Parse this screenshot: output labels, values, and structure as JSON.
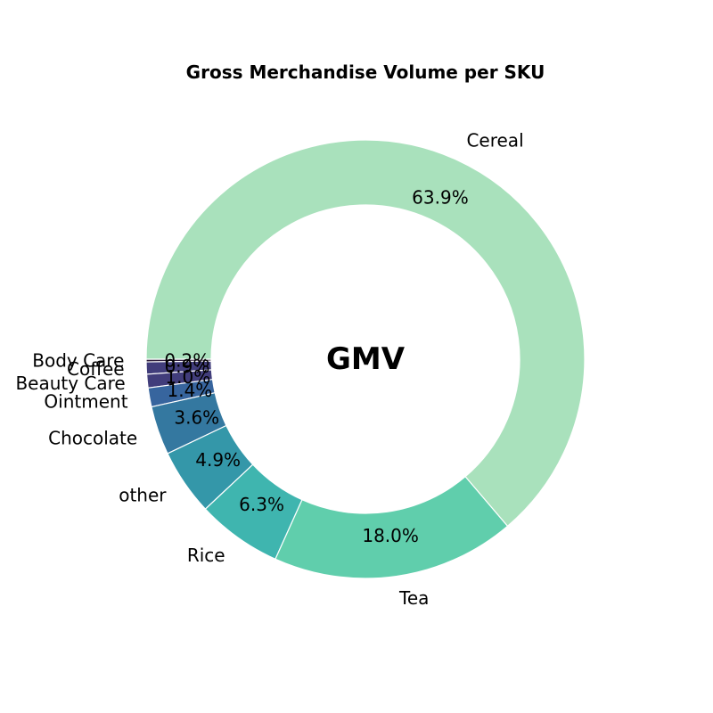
{
  "chart_data": {
    "type": "pie",
    "donut": true,
    "title": "Gross Merchandise Volume per SKU",
    "center_label": "GMV",
    "start_angle_deg": 180,
    "direction": "counterclockwise",
    "slices": [
      {
        "label": "Body Care",
        "value": 0.2,
        "pct_label": "0.2%",
        "color": "#2e1e3b"
      },
      {
        "label": "Coffee",
        "value": 0.9,
        "pct_label": "0.9%",
        "color": "#413d7b"
      },
      {
        "label": "Beauty Care",
        "value": 1.0,
        "pct_label": "1.0%",
        "color": "#413d7b"
      },
      {
        "label": "Ointment",
        "value": 1.4,
        "pct_label": "1.4%",
        "color": "#37659e"
      },
      {
        "label": "Chocolate",
        "value": 3.6,
        "pct_label": "3.6%",
        "color": "#3478a0"
      },
      {
        "label": "other",
        "value": 4.9,
        "pct_label": "4.9%",
        "color": "#3497a9"
      },
      {
        "label": "Rice",
        "value": 6.3,
        "pct_label": "6.3%",
        "color": "#3fb5af"
      },
      {
        "label": "Tea",
        "value": 18.0,
        "pct_label": "18.0%",
        "color": "#60ceac"
      },
      {
        "label": "Cereal",
        "value": 63.9,
        "pct_label": "63.9%",
        "color": "#a9e1bc"
      }
    ]
  }
}
